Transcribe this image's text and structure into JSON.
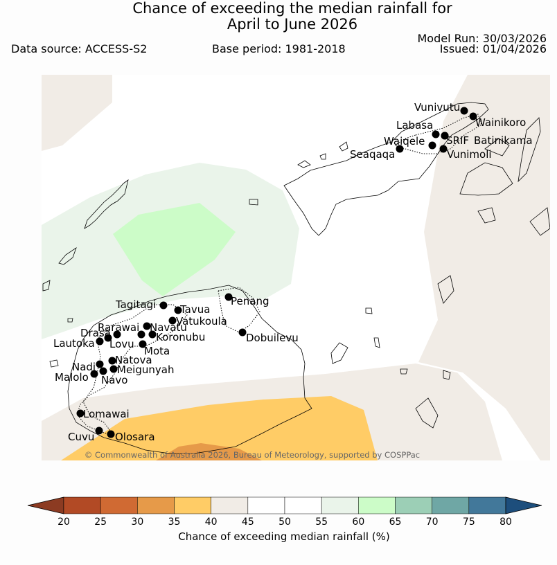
{
  "header": {
    "title_line1": "Chance of exceeding the median rainfall for",
    "title_line2": "April to June 2026",
    "data_source": "Data source: ACCESS-S2",
    "base_period": "Base period: 1981-2018",
    "model_run": "Model Run: 30/03/2026",
    "issued": "Issued: 01/04/2026"
  },
  "map": {
    "copyright": "© Commonwealth of Australia 2026, Bureau of Meteorology, supported by COSPPac",
    "stations": [
      {
        "name": "Vunivutu"
      },
      {
        "name": "Wainikoro"
      },
      {
        "name": "Labasa"
      },
      {
        "name": "SRIF"
      },
      {
        "name": "Batinikama"
      },
      {
        "name": "Waiqele"
      },
      {
        "name": "Seaqaqa"
      },
      {
        "name": "Vunimoli"
      },
      {
        "name": "Tagitagi"
      },
      {
        "name": "Tavua"
      },
      {
        "name": "Penang"
      },
      {
        "name": "Vatukoula"
      },
      {
        "name": "Rarawai"
      },
      {
        "name": "Navatu"
      },
      {
        "name": "Drasa"
      },
      {
        "name": "Koronubu"
      },
      {
        "name": "Lautoka"
      },
      {
        "name": "Lovu"
      },
      {
        "name": "Mota"
      },
      {
        "name": "Dobuilevu"
      },
      {
        "name": "Natova"
      },
      {
        "name": "Nadi"
      },
      {
        "name": "Meigunyah"
      },
      {
        "name": "Malolo"
      },
      {
        "name": "Navo"
      },
      {
        "name": "Lomawai"
      },
      {
        "name": "Cuvu"
      },
      {
        "name": "Olosara"
      }
    ]
  },
  "colorbar": {
    "title": "Chance of exceeding median rainfall (%)",
    "ticks": [
      "20",
      "25",
      "30",
      "35",
      "40",
      "45",
      "50",
      "55",
      "60",
      "65",
      "70",
      "75",
      "80"
    ],
    "colors": {
      "under": "#8c3b22",
      "bins": [
        "#b24a25",
        "#d06a33",
        "#e69a49",
        "#ffcc66",
        "#f1ece6",
        "#ffffff",
        "#ffffff",
        "#eaf4ea",
        "#ccfcc8",
        "#9ccfb6",
        "#6fa7a5",
        "#42789a"
      ],
      "over": "#1d4e7c"
    }
  }
}
